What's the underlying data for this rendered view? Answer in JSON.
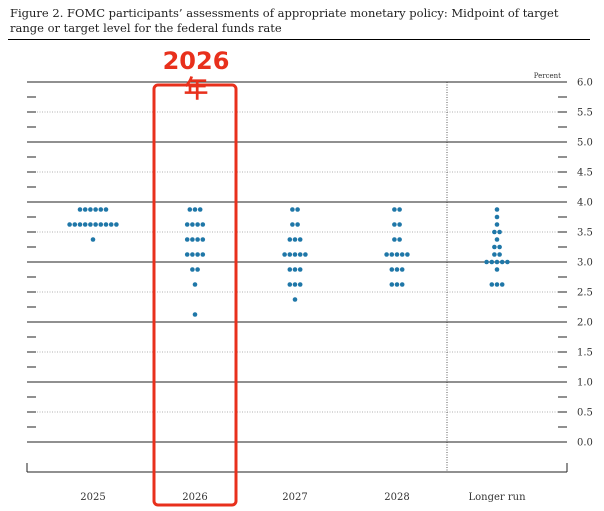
{
  "title": "Figure 2. FOMC participants’ assessments of appropriate monetary policy: Midpoint of target range or target level for the federal funds rate",
  "annotation": {
    "label": "2026年",
    "color": "#e8301c",
    "target_category": "2026"
  },
  "chart_data": {
    "type": "scatter",
    "title": "Figure 2. FOMC participants’ assessments of appropriate monetary policy: Midpoint of target range or target level for the federal funds rate",
    "xlabel": "",
    "ylabel": "Percent",
    "ylim": [
      -0.25,
      6.0
    ],
    "y_ticks": [
      "0.0",
      "0.5",
      "1.0",
      "1.5",
      "2.0",
      "2.5",
      "3.0",
      "3.5",
      "4.0",
      "4.5",
      "5.0",
      "5.5",
      "6.0"
    ],
    "categories": [
      "2025",
      "2026",
      "2027",
      "2028",
      "Longer run"
    ],
    "dot_color": "#1f77a8",
    "grid": "horizontal",
    "series": [
      {
        "category": "2025",
        "points": [
          {
            "y": 3.875,
            "count": 6
          },
          {
            "y": 3.625,
            "count": 10
          },
          {
            "y": 3.375,
            "count": 1
          }
        ]
      },
      {
        "category": "2026",
        "points": [
          {
            "y": 3.875,
            "count": 3
          },
          {
            "y": 3.625,
            "count": 4
          },
          {
            "y": 3.375,
            "count": 4
          },
          {
            "y": 3.125,
            "count": 4
          },
          {
            "y": 2.875,
            "count": 2
          },
          {
            "y": 2.625,
            "count": 1
          },
          {
            "y": 2.125,
            "count": 1
          }
        ]
      },
      {
        "category": "2027",
        "points": [
          {
            "y": 3.875,
            "count": 2
          },
          {
            "y": 3.625,
            "count": 2
          },
          {
            "y": 3.375,
            "count": 3
          },
          {
            "y": 3.125,
            "count": 5
          },
          {
            "y": 2.875,
            "count": 3
          },
          {
            "y": 2.625,
            "count": 3
          },
          {
            "y": 2.375,
            "count": 1
          }
        ]
      },
      {
        "category": "2028",
        "points": [
          {
            "y": 3.875,
            "count": 2
          },
          {
            "y": 3.625,
            "count": 2
          },
          {
            "y": 3.375,
            "count": 2
          },
          {
            "y": 3.125,
            "count": 5
          },
          {
            "y": 2.875,
            "count": 3
          },
          {
            "y": 2.625,
            "count": 3
          }
        ]
      },
      {
        "category": "Longer run",
        "points": [
          {
            "y": 3.875,
            "count": 1
          },
          {
            "y": 3.75,
            "count": 1
          },
          {
            "y": 3.625,
            "count": 1
          },
          {
            "y": 3.5,
            "count": 2
          },
          {
            "y": 3.375,
            "count": 1
          },
          {
            "y": 3.25,
            "count": 2
          },
          {
            "y": 3.125,
            "count": 2
          },
          {
            "y": 3.0,
            "count": 5
          },
          {
            "y": 2.875,
            "count": 1
          },
          {
            "y": 2.625,
            "count": 3
          }
        ]
      }
    ]
  }
}
